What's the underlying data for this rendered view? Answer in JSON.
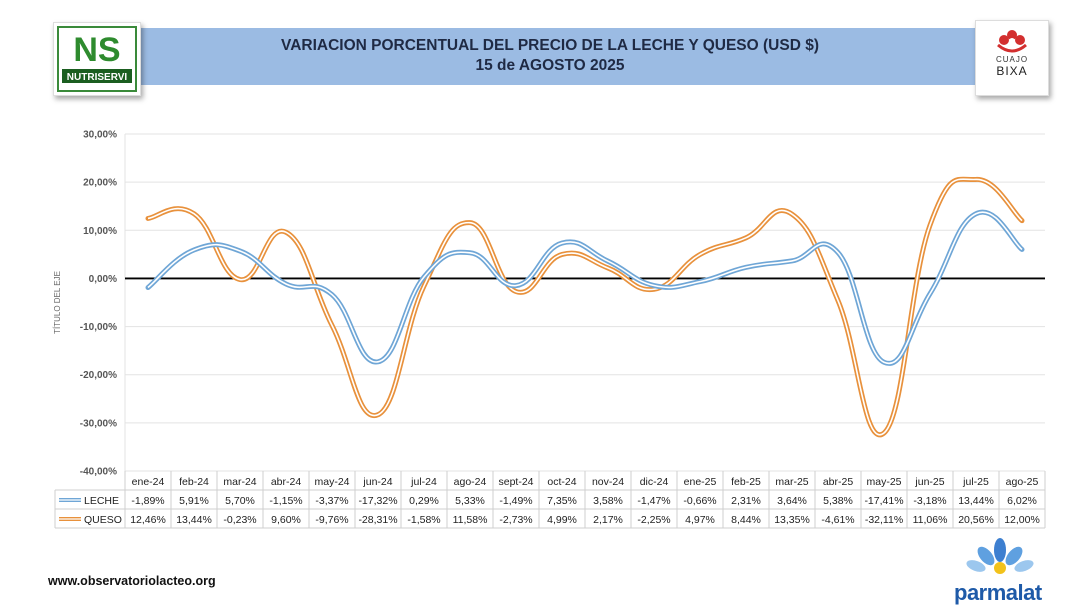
{
  "header": {
    "title_line1": "VARIACION PORCENTUAL DEL PRECIO DE LA LECHE Y QUESO (USD $)",
    "title_line2": "15 de AGOSTO 2025"
  },
  "logos": {
    "left_brand": "NUTRISERVI",
    "left_mark": "NS",
    "right_brand_top": "CUAJO",
    "right_brand_bottom": "BIXA",
    "bottom_brand": "parmalat"
  },
  "footer": {
    "website": "www.observatoriolacteo.org"
  },
  "chart_data": {
    "type": "line",
    "ylabel": "TÍTULO DEL EJE",
    "ylim": [
      -40,
      30
    ],
    "y_ticks": [
      "30,00%",
      "20,00%",
      "10,00%",
      "0,00%",
      "-10,00%",
      "-20,00%",
      "-30,00%",
      "-40,00%"
    ],
    "grid": true,
    "categories": [
      "ene-24",
      "feb-24",
      "mar-24",
      "abr-24",
      "may-24",
      "jun-24",
      "jul-24",
      "ago-24",
      "sept-24",
      "oct-24",
      "nov-24",
      "dic-24",
      "ene-25",
      "feb-25",
      "mar-25",
      "abr-25",
      "may-25",
      "jun-25",
      "jul-25",
      "ago-25"
    ],
    "series": [
      {
        "name": "LECHE",
        "color": "#6fa6d6",
        "values": [
          -1.89,
          5.91,
          5.7,
          -1.15,
          -3.37,
          -17.32,
          0.29,
          5.33,
          -1.49,
          7.35,
          3.58,
          -1.47,
          -0.66,
          2.31,
          3.64,
          5.38,
          -17.41,
          -3.18,
          13.44,
          6.02
        ],
        "labels": [
          "-1,89%",
          "5,91%",
          "5,70%",
          "-1,15%",
          "-3,37%",
          "-17,32%",
          "0,29%",
          "5,33%",
          "-1,49%",
          "7,35%",
          "3,58%",
          "-1,47%",
          "-0,66%",
          "2,31%",
          "3,64%",
          "5,38%",
          "-17,41%",
          "-3,18%",
          "13,44%",
          "6,02%"
        ]
      },
      {
        "name": "QUESO",
        "color": "#e8913c",
        "values": [
          12.46,
          13.44,
          -0.23,
          9.6,
          -9.76,
          -28.31,
          -1.58,
          11.58,
          -2.73,
          4.99,
          2.17,
          -2.25,
          4.97,
          8.44,
          13.35,
          -4.61,
          -32.11,
          11.06,
          20.56,
          12.0
        ],
        "labels": [
          "12,46%",
          "13,44%",
          "-0,23%",
          "9,60%",
          "-9,76%",
          "-28,31%",
          "-1,58%",
          "11,58%",
          "-2,73%",
          "4,99%",
          "2,17%",
          "-2,25%",
          "4,97%",
          "8,44%",
          "13,35%",
          "-4,61%",
          "-32,11%",
          "11,06%",
          "20,56%",
          "12,00%"
        ]
      }
    ]
  }
}
